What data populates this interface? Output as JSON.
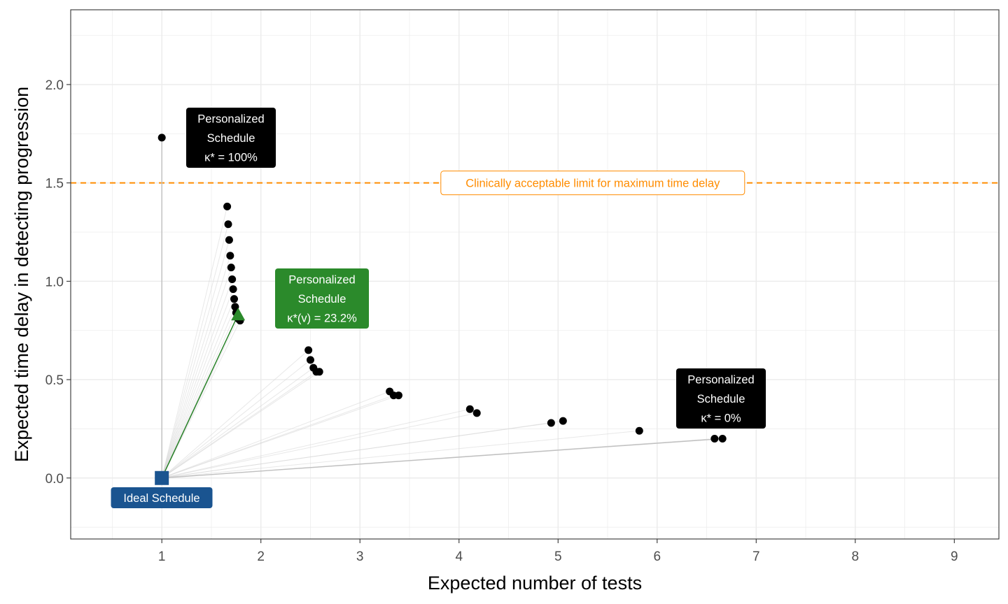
{
  "chart_data": {
    "type": "scatter",
    "xlabel": "Expected number of tests",
    "ylabel": "Expected time delay in detecting progression",
    "xlim": [
      0.08,
      9.45
    ],
    "ylim": [
      -0.31,
      2.38
    ],
    "x_ticks": [
      1,
      2,
      3,
      4,
      5,
      6,
      7,
      8,
      9
    ],
    "y_ticks": [
      0.0,
      0.5,
      1.0,
      1.5,
      2.0
    ],
    "x_tick_labels": [
      "1",
      "2",
      "3",
      "4",
      "5",
      "6",
      "7",
      "8",
      "9"
    ],
    "y_tick_labels": [
      "0.0",
      "0.5",
      "1.0",
      "1.5",
      "2.0"
    ],
    "grid": true,
    "colors": {
      "points": "#000000",
      "ideal": "#1a5490",
      "personalized_optimal": "#2b8a2b",
      "limit_line": "#ff8c00",
      "connector": "#bfbfbf",
      "grid": "#ebebeb"
    },
    "ideal_schedule": {
      "x": 1,
      "y": 0,
      "label": "Ideal Schedule"
    },
    "optimal_schedule": {
      "x": 1.77,
      "y": 0.83,
      "label_lines": [
        "Personalized",
        "Schedule",
        "κ*(v) = 23.2%"
      ]
    },
    "limit_line": {
      "y": 1.5,
      "label": "Clinically acceptable limit for maximum time delay"
    },
    "annotations": [
      {
        "label_lines": [
          "Personalized",
          "Schedule",
          "κ* = 100%"
        ],
        "x": 1.7,
        "y": 1.73
      },
      {
        "label_lines": [
          "Personalized",
          "Schedule",
          "κ* = 0%"
        ],
        "x": 6.63,
        "y": 0.25
      }
    ],
    "points": [
      {
        "x": 1.0,
        "y": 1.73
      },
      {
        "x": 1.66,
        "y": 1.38
      },
      {
        "x": 1.67,
        "y": 1.29
      },
      {
        "x": 1.68,
        "y": 1.21
      },
      {
        "x": 1.69,
        "y": 1.13
      },
      {
        "x": 1.7,
        "y": 1.07
      },
      {
        "x": 1.71,
        "y": 1.01
      },
      {
        "x": 1.72,
        "y": 0.96
      },
      {
        "x": 1.73,
        "y": 0.91
      },
      {
        "x": 1.74,
        "y": 0.87
      },
      {
        "x": 1.75,
        "y": 0.84
      },
      {
        "x": 1.77,
        "y": 0.81
      },
      {
        "x": 1.79,
        "y": 0.8
      },
      {
        "x": 2.48,
        "y": 0.65
      },
      {
        "x": 2.5,
        "y": 0.6
      },
      {
        "x": 2.53,
        "y": 0.56
      },
      {
        "x": 2.56,
        "y": 0.54
      },
      {
        "x": 2.59,
        "y": 0.54
      },
      {
        "x": 3.3,
        "y": 0.44
      },
      {
        "x": 3.34,
        "y": 0.42
      },
      {
        "x": 3.39,
        "y": 0.42
      },
      {
        "x": 4.11,
        "y": 0.35
      },
      {
        "x": 4.18,
        "y": 0.33
      },
      {
        "x": 4.93,
        "y": 0.28
      },
      {
        "x": 5.05,
        "y": 0.29
      },
      {
        "x": 5.82,
        "y": 0.24
      },
      {
        "x": 6.58,
        "y": 0.2
      },
      {
        "x": 6.66,
        "y": 0.2
      }
    ]
  }
}
